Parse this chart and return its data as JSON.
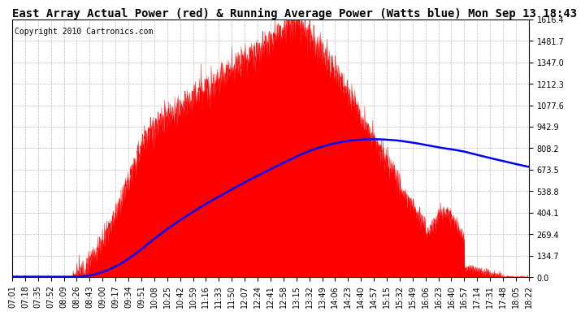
{
  "title": "East Array Actual Power (red) & Running Average Power (Watts blue) Mon Sep 13 18:43",
  "copyright": "Copyright 2010 Cartronics.com",
  "background_color": "#ffffff",
  "plot_bg_color": "#ffffff",
  "grid_color": "#bbbbbb",
  "ymin": 0.0,
  "ymax": 1616.4,
  "yticks": [
    0.0,
    134.7,
    269.4,
    404.1,
    538.8,
    673.5,
    808.2,
    942.9,
    1077.6,
    1212.3,
    1347.0,
    1481.7,
    1616.4
  ],
  "ytick_labels": [
    "0.0",
    "134.7",
    "269.4",
    "404.1",
    "538.8",
    "673.5",
    "808.2",
    "942.9",
    "1077.6",
    "1212.3",
    "1347.0",
    "1481.7",
    "1616.4"
  ],
  "xtick_labels": [
    "07:01",
    "07:18",
    "07:35",
    "07:52",
    "08:09",
    "08:26",
    "08:43",
    "09:00",
    "09:17",
    "09:34",
    "09:51",
    "10:08",
    "10:25",
    "10:42",
    "10:59",
    "11:16",
    "11:33",
    "11:50",
    "12:07",
    "12:24",
    "12:41",
    "12:58",
    "13:15",
    "13:32",
    "13:49",
    "14:06",
    "14:23",
    "14:40",
    "14:57",
    "15:15",
    "15:32",
    "15:49",
    "16:06",
    "16:23",
    "16:40",
    "16:57",
    "17:14",
    "17:31",
    "17:48",
    "18:05",
    "18:22"
  ],
  "actual_color": "#ff0000",
  "avg_color": "#0000ff",
  "title_fontsize": 10,
  "tick_fontsize": 7,
  "copyright_fontsize": 7
}
